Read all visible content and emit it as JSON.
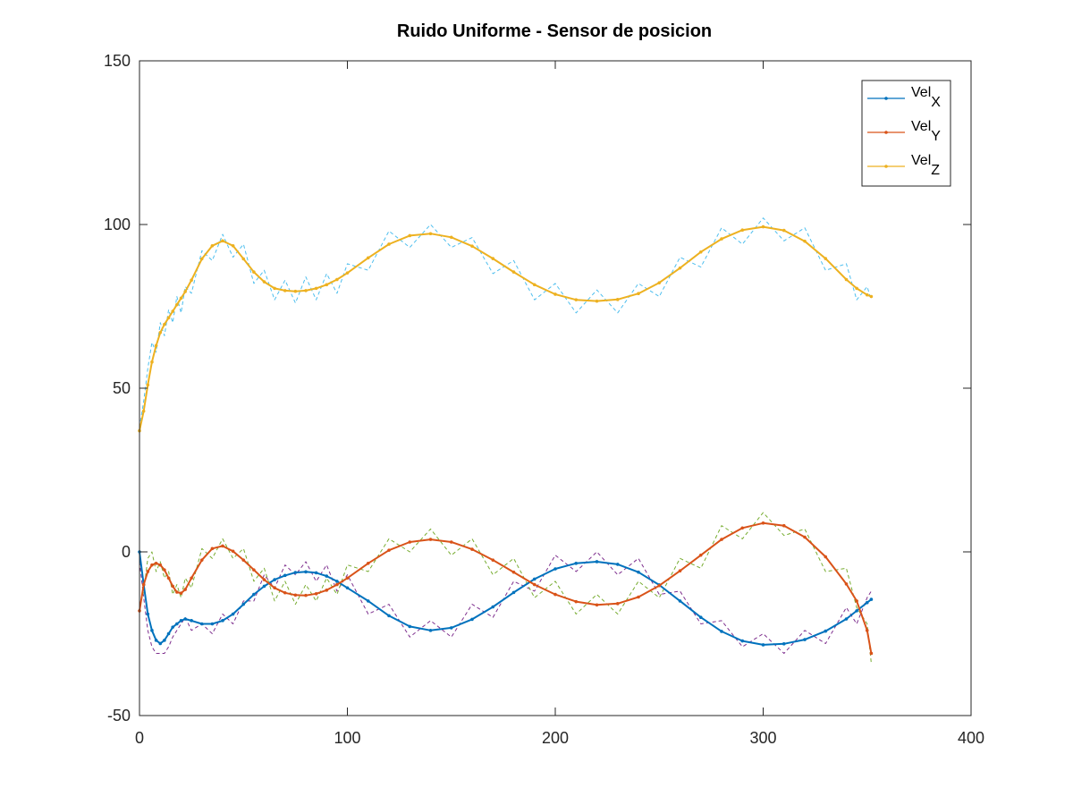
{
  "chart_data": {
    "type": "line",
    "title": "Ruido Uniforme - Sensor de posicion",
    "xlabel": "",
    "ylabel": "",
    "xlim": [
      0,
      400
    ],
    "ylim": [
      -50,
      150
    ],
    "xticks": [
      0,
      100,
      200,
      300,
      400
    ],
    "yticks": [
      -50,
      0,
      50,
      100,
      150
    ],
    "xtick_labels": [
      "0",
      "100",
      "200",
      "300",
      "400"
    ],
    "ytick_labels": [
      "-50",
      "0",
      "50",
      "100",
      "150"
    ],
    "grid": false,
    "legend_position": "top-right",
    "x": [
      0,
      2,
      4,
      6,
      8,
      10,
      12,
      14,
      16,
      18,
      20,
      22,
      25,
      30,
      35,
      40,
      45,
      50,
      55,
      60,
      65,
      70,
      75,
      80,
      85,
      90,
      95,
      100,
      110,
      120,
      130,
      140,
      150,
      160,
      170,
      180,
      190,
      200,
      210,
      220,
      230,
      240,
      250,
      260,
      270,
      280,
      290,
      300,
      310,
      320,
      330,
      340,
      345,
      350,
      352
    ],
    "series": [
      {
        "name": "Vel",
        "subscript": "X",
        "color": "#0072BD",
        "values": [
          0,
          -10,
          -19,
          -24,
          -27,
          -28,
          -27,
          -25,
          -23,
          -22,
          -21,
          -20.5,
          -21,
          -22,
          -22,
          -21,
          -19,
          -16,
          -13,
          -10.5,
          -8.5,
          -7.2,
          -6.3,
          -6.1,
          -6.4,
          -7.4,
          -9,
          -11,
          -15,
          -19.5,
          -22.8,
          -24,
          -23.2,
          -20.6,
          -16.8,
          -12.4,
          -8.3,
          -5.2,
          -3.5,
          -3.0,
          -3.8,
          -6.2,
          -10.1,
          -15,
          -20,
          -24.3,
          -27.2,
          -28.4,
          -28.1,
          -26.8,
          -24.2,
          -20.5,
          -18,
          -15.5,
          -14.5
        ]
      },
      {
        "name": "Vel",
        "subscript": "Y",
        "color": "#D95319",
        "values": [
          -18,
          -10,
          -6,
          -4,
          -3.5,
          -4,
          -5.5,
          -8,
          -10.5,
          -12.3,
          -12.6,
          -11.5,
          -8,
          -2.5,
          1,
          1.8,
          0.2,
          -2.5,
          -5.5,
          -8.5,
          -11,
          -12.5,
          -13.2,
          -13.3,
          -12.8,
          -11.7,
          -10,
          -8,
          -3.5,
          0.5,
          3,
          3.8,
          3,
          0.8,
          -2.5,
          -6.2,
          -10,
          -13,
          -15.2,
          -16.2,
          -15.8,
          -13.8,
          -10.3,
          -5.8,
          -1,
          3.8,
          7.3,
          8.8,
          8,
          4.5,
          -1.5,
          -9.8,
          -15,
          -24,
          -31
        ]
      },
      {
        "name": "Vel",
        "subscript": "Z",
        "color": "#EDB120",
        "values": [
          37,
          43,
          51,
          58,
          63,
          67,
          69.5,
          71.5,
          73.5,
          75.5,
          77.5,
          79.5,
          83,
          89.5,
          93.5,
          95,
          93.5,
          89.5,
          85.5,
          82.5,
          80.5,
          79.8,
          79.6,
          79.8,
          80.5,
          81.6,
          83.2,
          85.2,
          89.8,
          94,
          96.6,
          97.2,
          96.1,
          93.4,
          89.6,
          85.5,
          81.6,
          78.7,
          77,
          76.6,
          77.1,
          78.9,
          82.2,
          86.7,
          91.6,
          95.6,
          98.3,
          99.3,
          98.2,
          94.9,
          89.6,
          83.2,
          80.5,
          78.5,
          78
        ]
      },
      {
        "name": "",
        "color": "#7E2F8E",
        "dashed": true,
        "values": [
          -3,
          -14,
          -24,
          -29,
          -31,
          -31,
          -31,
          -29,
          -26,
          -24,
          -22,
          -20,
          -24,
          -22,
          -25,
          -19,
          -22,
          -15,
          -15,
          -7,
          -11,
          -4,
          -7,
          -3,
          -9,
          -4,
          -12,
          -7,
          -19,
          -16,
          -26,
          -21,
          -26,
          -16,
          -20,
          -9,
          -12,
          -1,
          -6,
          0,
          -7,
          -2,
          -13,
          -12,
          -22,
          -21,
          -29,
          -25,
          -31,
          -24,
          -28,
          -17,
          -22,
          -14,
          -12
        ]
      },
      {
        "name": "",
        "color": "#77AC30",
        "dashed": true,
        "values": [
          -17,
          -12,
          -2,
          0,
          -6,
          -3,
          -8,
          -6,
          -13,
          -10,
          -14,
          -8,
          -11,
          1,
          -2,
          4,
          -2,
          1,
          -9,
          -5,
          -15,
          -9,
          -16,
          -10,
          -15,
          -8,
          -13,
          -4,
          -6,
          4,
          0,
          7,
          -1,
          4,
          -7,
          -2,
          -14,
          -9,
          -19,
          -13,
          -19,
          -9,
          -14,
          -2,
          -5,
          8,
          4,
          12,
          5,
          7,
          -6,
          -5,
          -17,
          -22,
          -34
        ]
      },
      {
        "name": "",
        "color": "#4DBEEE",
        "dashed": true,
        "values": [
          38,
          46,
          56,
          64,
          61,
          70,
          66,
          74,
          70,
          78,
          73,
          81,
          79,
          92,
          89,
          97,
          90,
          94,
          82,
          86,
          77,
          83,
          76,
          84,
          77,
          85,
          79,
          88,
          86,
          98,
          93,
          100,
          93,
          96,
          85,
          89,
          77,
          82,
          73,
          80,
          73,
          82,
          78,
          90,
          87,
          99,
          94,
          102,
          95,
          99,
          86,
          88,
          77,
          81,
          77
        ]
      }
    ]
  }
}
